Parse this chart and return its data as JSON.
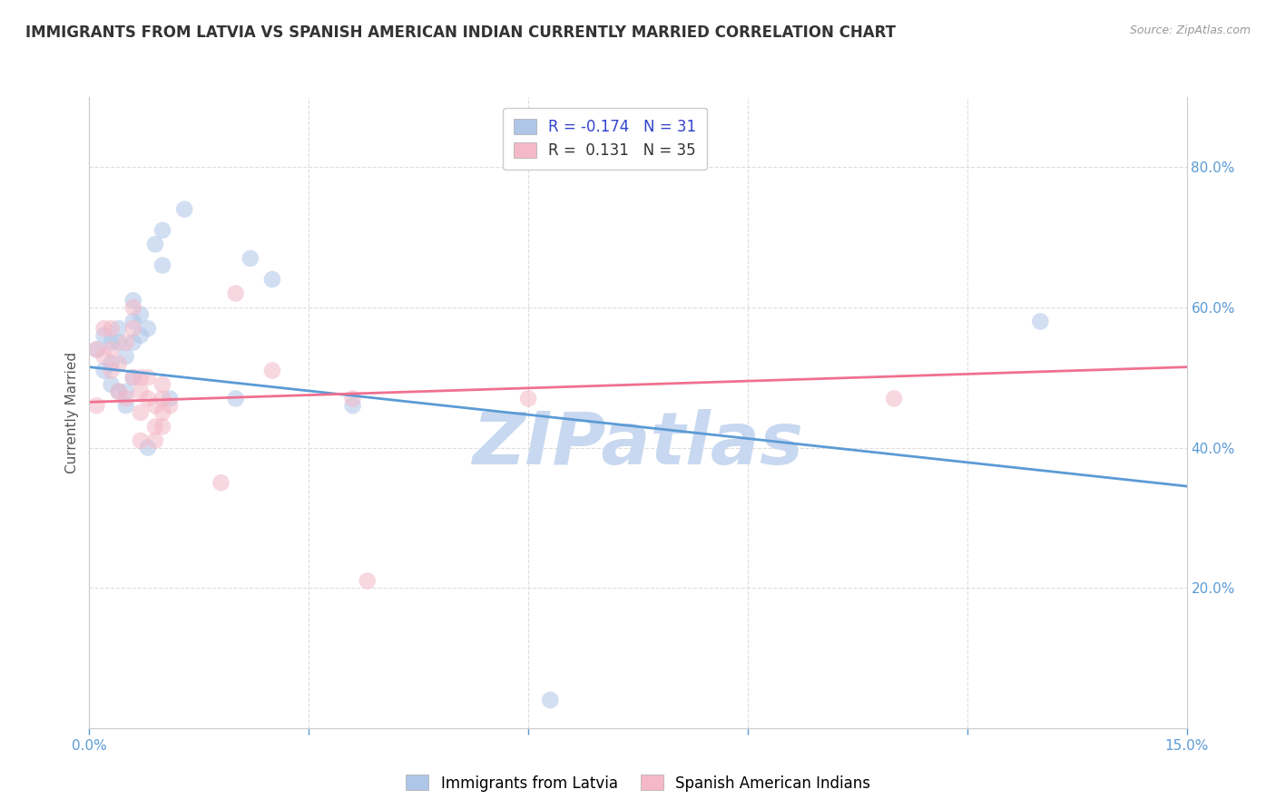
{
  "title": "IMMIGRANTS FROM LATVIA VS SPANISH AMERICAN INDIAN CURRENTLY MARRIED CORRELATION CHART",
  "source": "Source: ZipAtlas.com",
  "ylabel": "Currently Married",
  "right_yticks": [
    "20.0%",
    "40.0%",
    "60.0%",
    "80.0%"
  ],
  "right_ytick_vals": [
    0.2,
    0.4,
    0.6,
    0.8
  ],
  "xlim": [
    0.0,
    0.15
  ],
  "ylim": [
    0.0,
    0.9
  ],
  "blue_scatter_x": [
    0.001,
    0.002,
    0.002,
    0.003,
    0.003,
    0.003,
    0.004,
    0.004,
    0.004,
    0.005,
    0.005,
    0.005,
    0.006,
    0.006,
    0.006,
    0.006,
    0.007,
    0.007,
    0.008,
    0.008,
    0.009,
    0.01,
    0.01,
    0.011,
    0.013,
    0.02,
    0.022,
    0.025,
    0.036,
    0.13,
    0.063
  ],
  "blue_scatter_y": [
    0.54,
    0.56,
    0.51,
    0.55,
    0.52,
    0.49,
    0.57,
    0.55,
    0.48,
    0.53,
    0.48,
    0.46,
    0.61,
    0.58,
    0.55,
    0.5,
    0.59,
    0.56,
    0.57,
    0.4,
    0.69,
    0.71,
    0.66,
    0.47,
    0.74,
    0.47,
    0.67,
    0.64,
    0.46,
    0.58,
    0.04
  ],
  "pink_scatter_x": [
    0.001,
    0.001,
    0.002,
    0.002,
    0.003,
    0.003,
    0.003,
    0.004,
    0.004,
    0.005,
    0.005,
    0.006,
    0.006,
    0.006,
    0.007,
    0.007,
    0.007,
    0.007,
    0.008,
    0.008,
    0.009,
    0.009,
    0.009,
    0.01,
    0.01,
    0.01,
    0.01,
    0.011,
    0.018,
    0.02,
    0.025,
    0.036,
    0.06,
    0.11,
    0.038
  ],
  "pink_scatter_y": [
    0.54,
    0.46,
    0.57,
    0.53,
    0.57,
    0.54,
    0.51,
    0.52,
    0.48,
    0.55,
    0.47,
    0.6,
    0.57,
    0.5,
    0.5,
    0.48,
    0.45,
    0.41,
    0.5,
    0.47,
    0.46,
    0.43,
    0.41,
    0.49,
    0.47,
    0.45,
    0.43,
    0.46,
    0.35,
    0.62,
    0.51,
    0.47,
    0.47,
    0.47,
    0.21
  ],
  "blue_line_x": [
    0.0,
    0.15
  ],
  "blue_line_y": [
    0.515,
    0.345
  ],
  "pink_line_x": [
    0.0,
    0.15
  ],
  "pink_line_y": [
    0.465,
    0.515
  ],
  "scatter_size": 180,
  "scatter_alpha": 0.55,
  "blue_color": "#aec6e8",
  "pink_color": "#f4b8c8",
  "blue_line_color": "#5b9bd5",
  "pink_line_color": "#f07090",
  "watermark": "ZIPatlas",
  "watermark_color": "#c8d8f0",
  "grid_color": "#dddddd",
  "title_fontsize": 12,
  "axis_label_fontsize": 11,
  "tick_fontsize": 11,
  "legend_fontsize": 12,
  "legend1_r": "-0.174",
  "legend1_n": "31",
  "legend2_r": "0.131",
  "legend2_n": "35"
}
